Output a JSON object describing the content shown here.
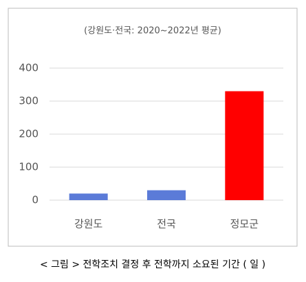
{
  "chart_data": {
    "type": "bar",
    "subtitle": "(강원도·전국: 2020~2022년 평균)",
    "categories": [
      "강원도",
      "전국",
      "정모군"
    ],
    "values": [
      20,
      30,
      330
    ],
    "colors": [
      "#5b7bd8",
      "#5b7bd8",
      "#ff0000"
    ],
    "ylim": [
      0,
      400
    ],
    "yticks": [
      0,
      100,
      200,
      300,
      400
    ],
    "grid": true,
    "caption": "< 그림 > 전학조치 결정 후 전학까지 소요된 기간 ( 일 )"
  }
}
